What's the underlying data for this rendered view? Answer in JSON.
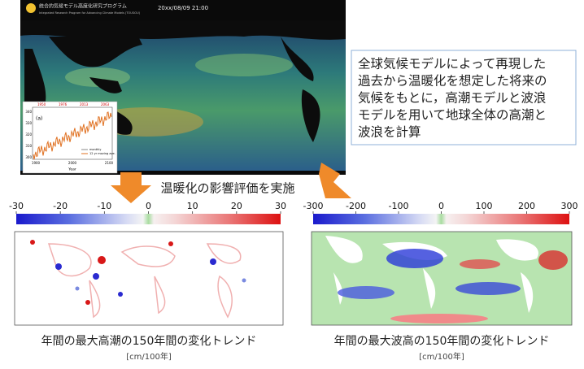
{
  "header": {
    "program": "統合的気候モデル高度化研究プログラム",
    "program_en": "Integrated Research Program for Advancing Climate Models (TOUGOU)",
    "timestamp": "20xx/08/09 21:00"
  },
  "inset_chart": {
    "label": "(a)",
    "markers": [
      "1950",
      "1976",
      "2013",
      "2063"
    ],
    "yticks": [
      "300",
      "310",
      "320",
      "330",
      "340"
    ],
    "xticks": [
      "1900",
      "2000",
      "2100"
    ],
    "x_label": "Year",
    "legend": [
      "monthly",
      "12 yr moving ave."
    ]
  },
  "description": [
    "全球気候モデルによって再現した",
    "過去から温暖化を想定した将来の",
    "気候をもとに，高潮モデルと波浪",
    "モデルを用いて地球全体の高潮と",
    "波浪を計算"
  ],
  "arrow_label": "温暖化の影響評価を実施",
  "panels": [
    {
      "colorbar_ticks": [
        -30,
        -20,
        -10,
        0,
        10,
        20,
        30
      ],
      "caption": "年間の最大高潮の150年間の変化トレンド",
      "unit": "[cm/100年]"
    },
    {
      "colorbar_ticks": [
        -300,
        -200,
        -100,
        0,
        100,
        200,
        300
      ],
      "caption": "年間の最大波高の150年間の変化トレンド",
      "unit": "[cm/100年]"
    }
  ]
}
